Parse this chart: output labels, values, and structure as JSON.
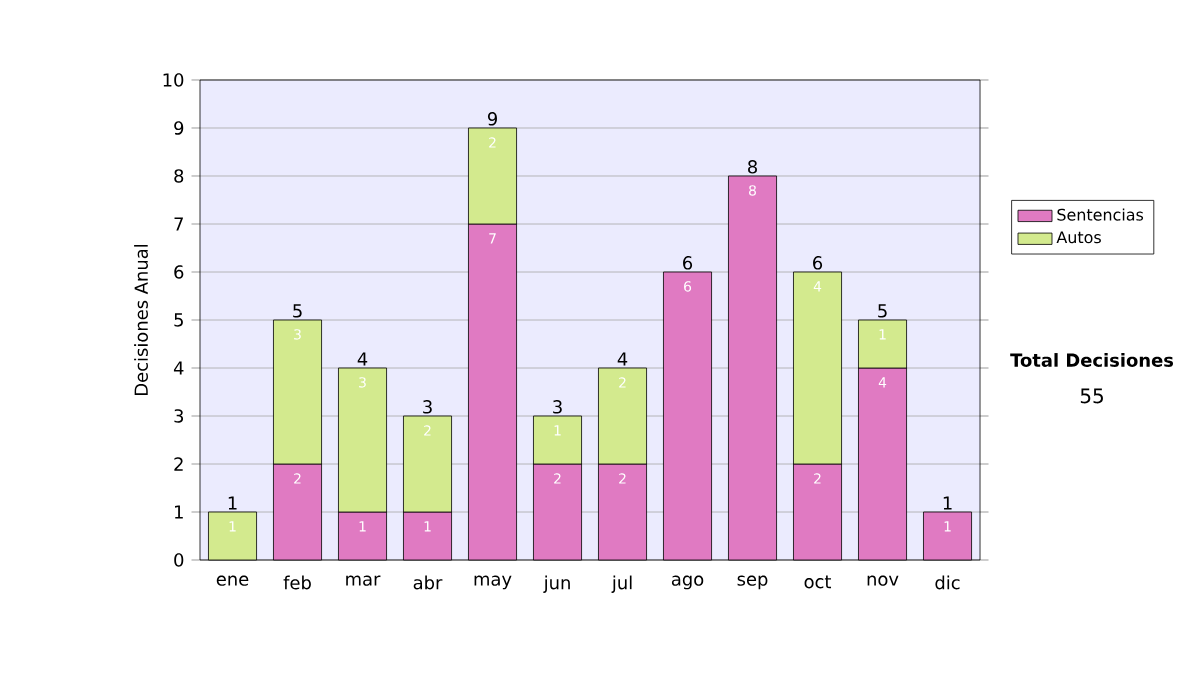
{
  "chart_data": {
    "type": "bar",
    "stacked": true,
    "ylabel": "Decisiones Anual",
    "categories": [
      "ene",
      "feb",
      "mar",
      "abr",
      "may",
      "jun",
      "jul",
      "ago",
      "sep",
      "oct",
      "nov",
      "dic"
    ],
    "series": [
      {
        "name": "Sentencias",
        "color": "#e07ac2",
        "values": [
          null,
          2,
          1,
          1,
          7,
          2,
          2,
          6,
          8,
          2,
          4,
          1
        ]
      },
      {
        "name": "Autos",
        "color": "#d3ea8e",
        "values": [
          1,
          3,
          3,
          2,
          2,
          1,
          2,
          null,
          null,
          4,
          1,
          null
        ]
      }
    ],
    "totals": [
      "1",
      "5",
      "4",
      "3",
      "9",
      "3",
      "4",
      "6",
      "8",
      "6",
      "5",
      "1"
    ],
    "ylim": [
      0,
      10
    ],
    "yticks": [
      0,
      1,
      2,
      3,
      4,
      5,
      6,
      7,
      8,
      9,
      10
    ],
    "grid": "y",
    "legend": "right",
    "data_labels": true,
    "annotations": [
      "Total Decisiones",
      "55"
    ]
  }
}
